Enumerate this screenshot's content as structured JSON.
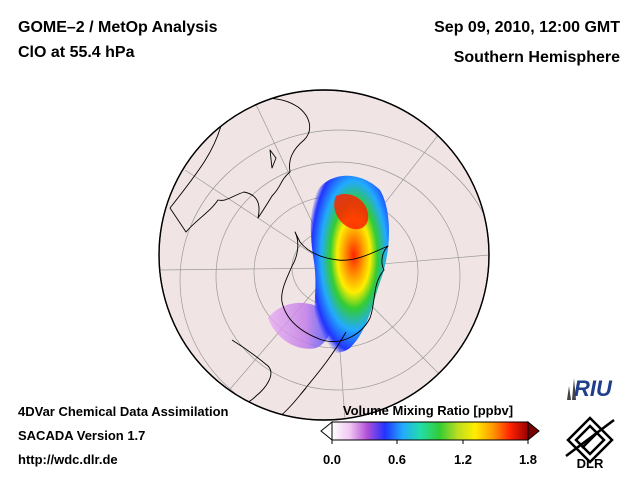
{
  "header": {
    "title_left_1": "GOME–2 / MetOp Analysis",
    "title_left_2": "ClO at 55.4 hPa",
    "title_right_1": "Sep 09, 2010, 12:00 GMT",
    "title_right_2": "Southern Hemisphere"
  },
  "footer": {
    "line1": "4DVar Chemical Data Assimilation",
    "line2": "SACADA Version 1.7",
    "line3": "http://wdc.dlr.de"
  },
  "colorbar": {
    "label": "Volume Mixing Ratio [ppbv]",
    "ticks": [
      "0.0",
      "0.6",
      "1.2",
      "1.8"
    ],
    "colors": [
      "#ffffff",
      "#f2c8f2",
      "#b04fd8",
      "#2233ff",
      "#22aaff",
      "#22ddaa",
      "#33cc33",
      "#bbdd22",
      "#ffee00",
      "#ff9900",
      "#ff2200",
      "#990000"
    ]
  },
  "logos": {
    "riu": "RIU",
    "dlr": "DLR"
  },
  "map": {
    "globe_fill": "#f1e4e4",
    "outline_color": "#000000",
    "grid_color": "#9a9a9a"
  }
}
